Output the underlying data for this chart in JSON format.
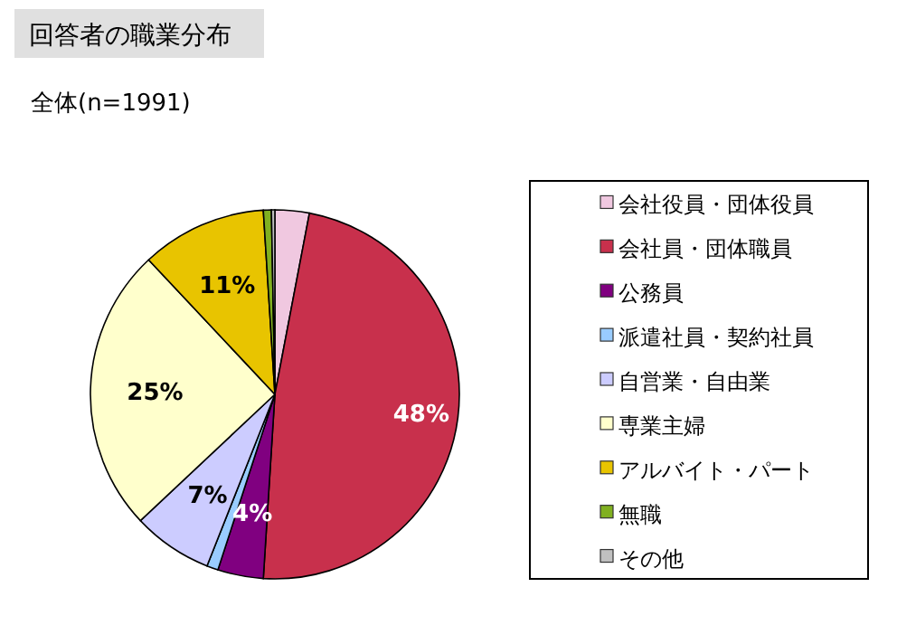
{
  "chart_data": {
    "type": "pie",
    "title": "回答者の職業分布",
    "subtitle": "全体(n=1991)",
    "categories": [
      "会社役員・団体役員",
      "会社員・団体職員",
      "公務員",
      "派遣社員・契約社員",
      "自営業・自由業",
      "専業主婦",
      "アルバイト・パート",
      "無職",
      "その他"
    ],
    "values": [
      3,
      48,
      4,
      1,
      7,
      25,
      11,
      0.7,
      0.3
    ],
    "value_labels": [
      null,
      "48%",
      "4%",
      null,
      "7%",
      "25%",
      "11%",
      null,
      null
    ],
    "colors": [
      "#f0c8e0",
      "#c8304c",
      "#800080",
      "#99ccff",
      "#ccccff",
      "#ffffcc",
      "#e8c400",
      "#80b020",
      "#c0c0c0"
    ],
    "legend": "right"
  }
}
